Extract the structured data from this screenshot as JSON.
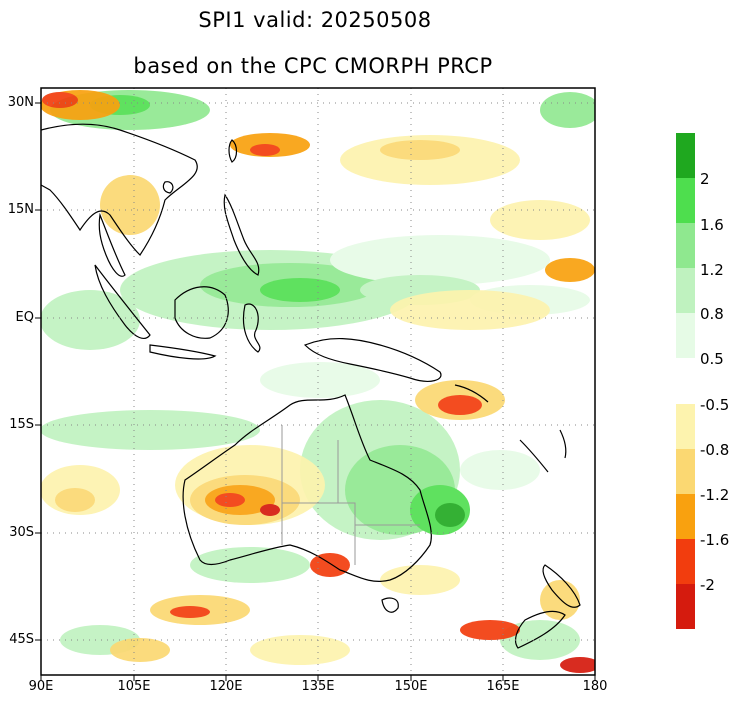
{
  "title_line1": "SPI1   valid: 20250508",
  "title_line2": "based on the CPC CMORPH PRCP",
  "map": {
    "lon_range": [
      90,
      180
    ],
    "lat_range": [
      -50,
      31
    ],
    "x_ticks": [
      "90E",
      "105E",
      "120E",
      "135E",
      "150E",
      "165E",
      "180"
    ],
    "y_ticks": [
      "30N",
      "15N",
      "EQ",
      "15S",
      "30S",
      "45S"
    ],
    "grid": "dotted"
  },
  "colorbar_wet": {
    "labels": [
      "2",
      "1.6",
      "1.2",
      "0.8",
      "0.5"
    ],
    "colors": [
      "#1fa81f",
      "#4ede4e",
      "#8fe88f",
      "#bff2bf",
      "#e6fbe6"
    ]
  },
  "colorbar_dry": {
    "labels": [
      "-0.5",
      "-0.8",
      "-1.2",
      "-1.6",
      "-2"
    ],
    "colors": [
      "#fdf3ae",
      "#fbd872",
      "#f9a10f",
      "#f23d0e",
      "#d51b0e"
    ]
  }
}
